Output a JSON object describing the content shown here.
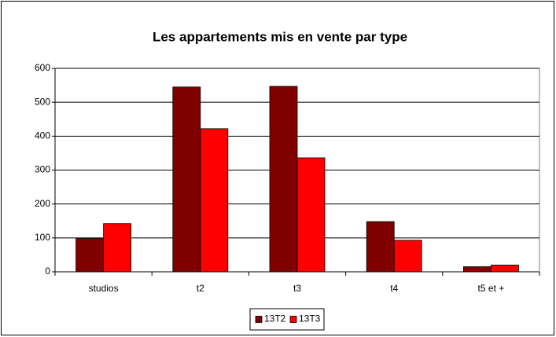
{
  "chart_data": {
    "type": "bar",
    "title": "Les appartements mis en vente par type",
    "categories": [
      "studios",
      "t2",
      "t3",
      "t4",
      "t5 et +"
    ],
    "series": [
      {
        "name": "13T2",
        "color": "#800000",
        "values": [
          98,
          545,
          547,
          148,
          15
        ]
      },
      {
        "name": "13T3",
        "color": "#ff0000",
        "values": [
          142,
          422,
          336,
          93,
          20
        ]
      }
    ],
    "ylim": [
      0,
      600
    ],
    "yticks": [
      0,
      100,
      200,
      300,
      400,
      500,
      600
    ],
    "grid": true,
    "legend": "bottom"
  }
}
